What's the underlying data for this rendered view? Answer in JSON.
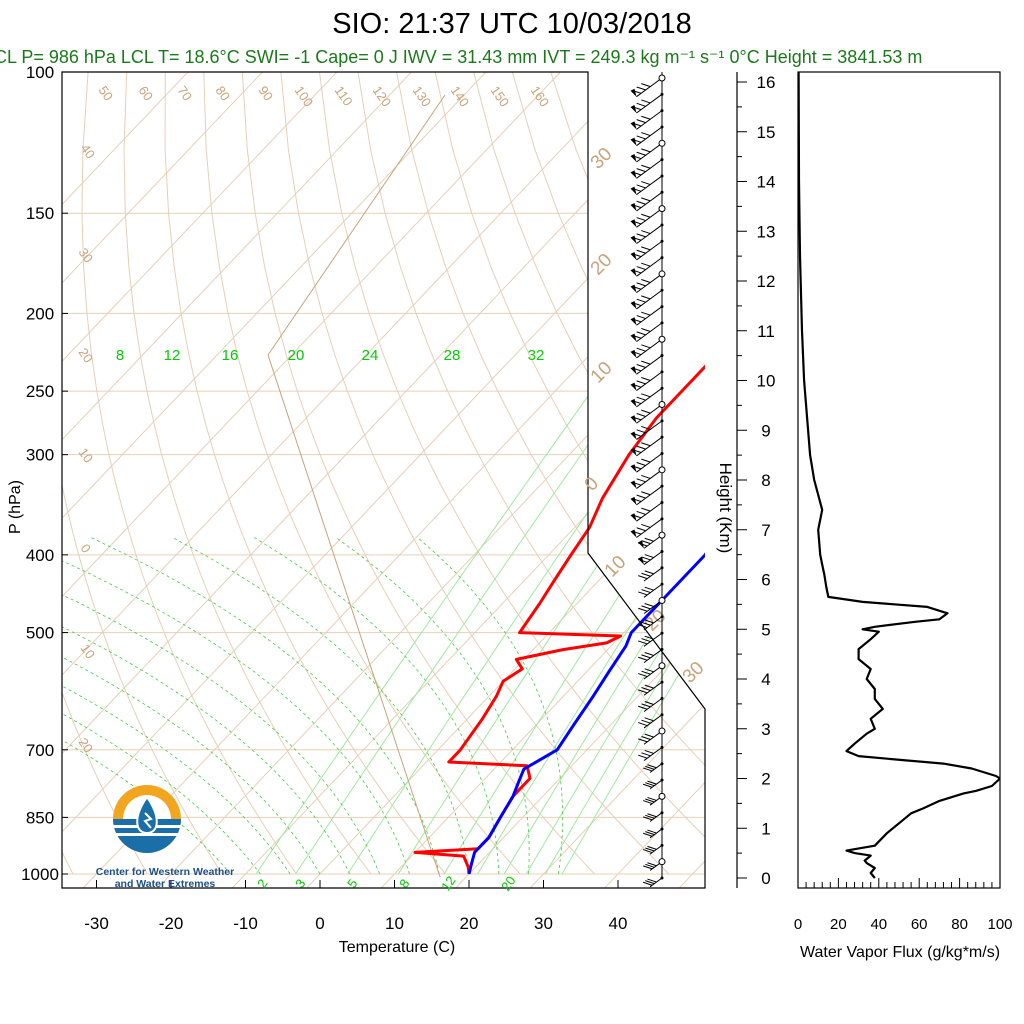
{
  "title": "SIO: 21:37 UTC 10/03/2018",
  "subtitle": "CL P= 986 hPa  LCL T= 18.6°C  SWI= -1  Cape= 0 J  IWV = 31.43 mm  IVT = 249.3 kg m⁻¹ s⁻¹  0°C Height = 3841.53 m",
  "logo": {
    "line1": "Center for Western Weather",
    "line2": "and Water Extremes",
    "colors": {
      "ring": "#f2a51f",
      "water": "#1b6fa8"
    }
  },
  "colors": {
    "temperature": "#ff0000",
    "dewpoint": "#0000ff",
    "isotherm": "#e7cfb6",
    "isotherm_label": "#c8a27a",
    "mixing_ratio": "#44cc44",
    "mixing_label": "#00cc00",
    "flux": "#000000"
  },
  "chart_data": [
    {
      "type": "line",
      "name": "skew-t",
      "xlabel": "Temperature (C)",
      "ylabel": "P (hPa)",
      "x_ticks": [
        "-30",
        "-20",
        "-10",
        "0",
        "10",
        "20",
        "30",
        "40"
      ],
      "y_ticks": [
        "100",
        "150",
        "200",
        "250",
        "300",
        "400",
        "500",
        "700",
        "850",
        "1000"
      ],
      "isotherm_labels": [
        "-80",
        "-70",
        "-60",
        "-50",
        "-40",
        "-30",
        "-20",
        "-10",
        "0",
        "10",
        "20",
        "30",
        "40",
        "50",
        "60",
        "70",
        "80",
        "90",
        "100",
        "110",
        "120",
        "130",
        "140",
        "150",
        "160"
      ],
      "mixing_ratio_labels_top": [
        "8",
        "12",
        "16",
        "20",
        "24",
        "28",
        "32"
      ],
      "mixing_ratio_labels_bottom": [
        "2",
        "3",
        "5",
        "8",
        "12",
        "20"
      ],
      "series": [
        {
          "name": "temperature",
          "points": [
            [
              100,
              -6
            ],
            [
              104,
              -10
            ],
            [
              110,
              -12
            ],
            [
              115,
              -14
            ],
            [
              125,
              -16
            ],
            [
              130,
              -16
            ],
            [
              140,
              -15
            ],
            [
              150,
              -14
            ],
            [
              160,
              -11
            ],
            [
              170,
              -10
            ],
            [
              180,
              -12
            ],
            [
              200,
              -13
            ],
            [
              230,
              -13
            ],
            [
              270,
              -13
            ],
            [
              300,
              -12
            ],
            [
              340,
              -10
            ],
            [
              370,
              -8
            ],
            [
              400,
              -7
            ],
            [
              430,
              -6
            ],
            [
              460,
              -5
            ],
            [
              500,
              -4
            ],
            [
              505,
              10
            ],
            [
              515,
              9
            ],
            [
              525,
              4
            ],
            [
              540,
              -1
            ],
            [
              555,
              1
            ],
            [
              575,
              0
            ],
            [
              600,
              1
            ],
            [
              640,
              2
            ],
            [
              700,
              3
            ],
            [
              725,
              3
            ],
            [
              733,
              14
            ],
            [
              760,
              16
            ],
            [
              800,
              16
            ],
            [
              850,
              17
            ],
            [
              900,
              18
            ],
            [
              930,
              18
            ],
            [
              940,
              10
            ],
            [
              950,
              17
            ],
            [
              980,
              19
            ],
            [
              1000,
              20
            ]
          ]
        },
        {
          "name": "dewpoint",
          "points": [
            [
              100,
              12
            ],
            [
              104,
              11
            ],
            [
              110,
              9
            ],
            [
              115,
              7
            ],
            [
              125,
              4
            ],
            [
              140,
              4
            ],
            [
              150,
              5
            ],
            [
              160,
              7
            ],
            [
              170,
              8
            ],
            [
              180,
              6
            ],
            [
              200,
              6
            ],
            [
              230,
              6
            ],
            [
              270,
              6
            ],
            [
              300,
              7
            ],
            [
              340,
              8
            ],
            [
              370,
              10
            ],
            [
              400,
              11
            ],
            [
              450,
              11
            ],
            [
              500,
              11
            ],
            [
              520,
              12
            ],
            [
              560,
              13
            ],
            [
              600,
              14
            ],
            [
              650,
              15
            ],
            [
              700,
              16
            ],
            [
              720,
              15
            ],
            [
              740,
              14
            ],
            [
              770,
              15
            ],
            [
              800,
              16
            ],
            [
              850,
              17
            ],
            [
              900,
              18
            ],
            [
              940,
              18
            ],
            [
              970,
              19
            ],
            [
              1000,
              20
            ]
          ]
        }
      ],
      "wind_barb_levels": 50
    },
    {
      "type": "line",
      "name": "water-vapor-flux",
      "xlabel": "Water Vapor Flux (g/kg*m/s)",
      "ylabel": "Height (Km)",
      "x_ticks": [
        "0",
        "20",
        "40",
        "60",
        "80",
        "100"
      ],
      "y_ticks": [
        "0",
        "1",
        "2",
        "3",
        "4",
        "5",
        "6",
        "7",
        "8",
        "9",
        "10",
        "11",
        "12",
        "13",
        "14",
        "15",
        "16"
      ],
      "xlim": [
        0,
        100
      ],
      "ylim": [
        0,
        16.3
      ],
      "series": [
        {
          "name": "flux",
          "points": [
            [
              38,
              0.0
            ],
            [
              36,
              0.1
            ],
            [
              38,
              0.2
            ],
            [
              34,
              0.3
            ],
            [
              33,
              0.35
            ],
            [
              36,
              0.45
            ],
            [
              28,
              0.5
            ],
            [
              24,
              0.55
            ],
            [
              38,
              0.65
            ],
            [
              44,
              0.9
            ],
            [
              50,
              1.1
            ],
            [
              56,
              1.3
            ],
            [
              62,
              1.4
            ],
            [
              70,
              1.55
            ],
            [
              82,
              1.7
            ],
            [
              88,
              1.75
            ],
            [
              96,
              1.85
            ],
            [
              100,
              2.0
            ],
            [
              98,
              2.05
            ],
            [
              94,
              2.1
            ],
            [
              86,
              2.2
            ],
            [
              72,
              2.3
            ],
            [
              52,
              2.37
            ],
            [
              30,
              2.45
            ],
            [
              24,
              2.55
            ],
            [
              28,
              2.7
            ],
            [
              34,
              2.9
            ],
            [
              38,
              3.0
            ],
            [
              36,
              3.2
            ],
            [
              42,
              3.4
            ],
            [
              38,
              3.6
            ],
            [
              38,
              3.8
            ],
            [
              34,
              4.0
            ],
            [
              36,
              4.2
            ],
            [
              30,
              4.4
            ],
            [
              30,
              4.6
            ],
            [
              36,
              4.8
            ],
            [
              40,
              4.95
            ],
            [
              32,
              5.0
            ],
            [
              38,
              5.05
            ],
            [
              58,
              5.15
            ],
            [
              70,
              5.2
            ],
            [
              74,
              5.32
            ],
            [
              64,
              5.45
            ],
            [
              32,
              5.55
            ],
            [
              15,
              5.65
            ],
            [
              14,
              5.85
            ],
            [
              13,
              6.1
            ],
            [
              12,
              6.3
            ],
            [
              11,
              6.5
            ],
            [
              10,
              7.0
            ],
            [
              11,
              7.2
            ],
            [
              12,
              7.4
            ],
            [
              10,
              7.7
            ],
            [
              8,
              8.0
            ],
            [
              6,
              8.5
            ],
            [
              5,
              9.0
            ],
            [
              4,
              9.5
            ],
            [
              3,
              10.0
            ],
            [
              2,
              11.0
            ],
            [
              1,
              12.5
            ],
            [
              0.5,
              14.0
            ],
            [
              0.3,
              16.2
            ]
          ]
        }
      ]
    }
  ]
}
